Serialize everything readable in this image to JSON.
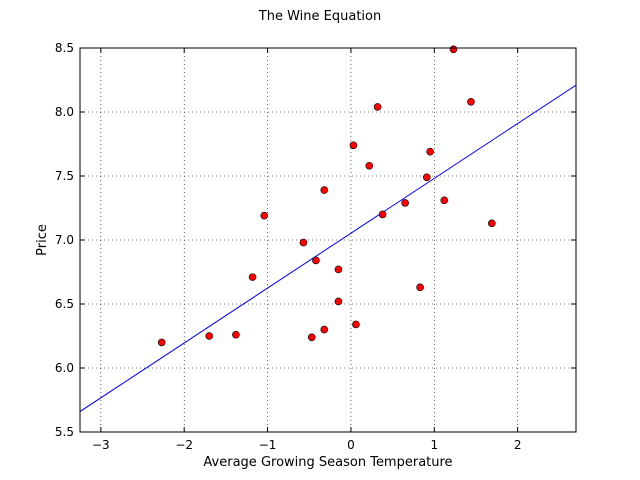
{
  "chart_data": {
    "type": "scatter",
    "title": "The Wine Equation",
    "xlabel": "Average Growing Season Temperature",
    "ylabel": "Price",
    "xlim": [
      -3.25,
      2.7
    ],
    "ylim": [
      5.5,
      8.5
    ],
    "xticks": [
      -3,
      -2,
      -1,
      0,
      1,
      2
    ],
    "yticks": [
      5.5,
      6.0,
      6.5,
      7.0,
      7.5,
      8.0,
      8.5
    ],
    "grid": true,
    "colors": {
      "points": "#ff0000",
      "point_edge": "#000000",
      "line": "#0000ff"
    },
    "points": {
      "x": [
        -2.27,
        -1.7,
        -1.38,
        -1.18,
        -1.04,
        -0.57,
        -0.42,
        -0.47,
        -0.32,
        -0.32,
        -0.15,
        -0.15,
        0.03,
        0.06,
        0.22,
        0.32,
        0.38,
        0.65,
        0.83,
        0.91,
        0.95,
        1.12,
        1.23,
        1.44,
        1.69
      ],
      "y": [
        6.2,
        6.25,
        6.26,
        6.71,
        7.19,
        6.98,
        6.84,
        6.24,
        7.39,
        6.3,
        6.52,
        6.77,
        7.74,
        6.34,
        7.58,
        8.04,
        7.2,
        7.29,
        6.63,
        7.49,
        7.69,
        7.31,
        8.49,
        8.08,
        7.13
      ]
    },
    "fit_line": {
      "x": [
        -3.25,
        2.7
      ],
      "y": [
        5.66,
        8.21
      ]
    }
  }
}
